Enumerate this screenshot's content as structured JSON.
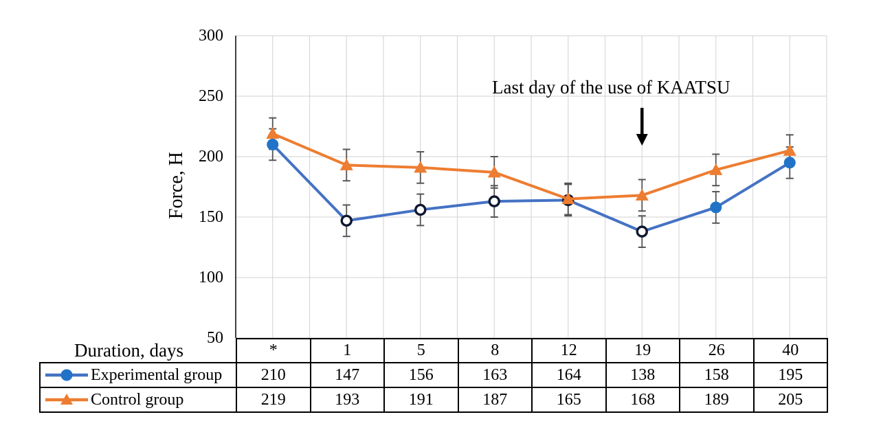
{
  "chart_data": {
    "type": "line",
    "title": "",
    "ylabel": "Force, H",
    "xlabel": "Duration, days",
    "ylim": [
      50,
      300
    ],
    "yticks": [
      300,
      250,
      200,
      150,
      100,
      50
    ],
    "grid": true,
    "gridline_color": "#D9D9D9",
    "axis_color": "#000000",
    "error_bar_plus_minus": 13,
    "error_bar_color": "#555555",
    "categories": [
      "*",
      "1",
      "5",
      "8",
      "12",
      "19",
      "26",
      "40"
    ],
    "series": [
      {
        "name": "Experimental group",
        "values": [
          210,
          147,
          156,
          163,
          164,
          138,
          158,
          195
        ],
        "line_color": "#4472C4",
        "marker": "circle",
        "marker_fill": "#2173C8",
        "open_marker_stroke": "#101830",
        "marker_styles": [
          "filled",
          "open",
          "open",
          "open",
          "open",
          "open",
          "filled",
          "filled"
        ]
      },
      {
        "name": "Control group",
        "values": [
          219,
          193,
          191,
          187,
          165,
          168,
          189,
          205
        ],
        "line_color": "#ED7D31",
        "marker": "triangle",
        "marker_fill": "#ED7D31",
        "marker_styles": [
          "filled",
          "filled",
          "filled",
          "filled",
          "filled",
          "filled",
          "filled",
          "filled"
        ]
      }
    ],
    "annotation": {
      "text": "Last day of the use of KAATSU",
      "arrow": "down",
      "target_category": "19"
    },
    "legend_position": "table rows below chart"
  },
  "table": {
    "header_label": "Duration, days",
    "columns": [
      "*",
      "1",
      "5",
      "8",
      "12",
      "19",
      "26",
      "40"
    ],
    "rows": [
      {
        "label": "Experimental group",
        "values": [
          210,
          147,
          156,
          163,
          164,
          138,
          158,
          195
        ]
      },
      {
        "label": "Control group",
        "values": [
          219,
          193,
          191,
          187,
          165,
          168,
          189,
          205
        ]
      }
    ]
  }
}
